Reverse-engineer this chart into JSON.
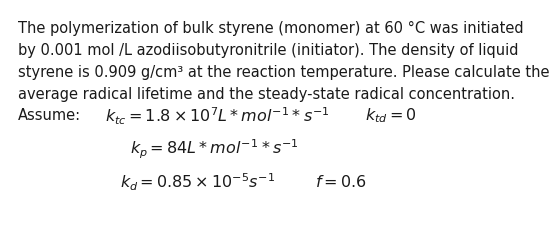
{
  "background_color": "#ffffff",
  "text_color": "#1a1a1a",
  "para_lines": [
    "The polymerization of bulk styrene (monomer) at 60 °C was initiated",
    "by 0.001 mol /L azodiisobutyronitrile (initiator). The density of liquid",
    "styrene is 0.909 g/cm³ at the reaction temperature. Please calculate the",
    "average radical lifetime and the steady-state radical concentration."
  ],
  "assume_label": "Assume:",
  "eq1_left": "$k_{tc} = 1.8\\times10^{7}L*mol^{-1}*s^{-1}$",
  "eq1_right": "$k_{td} = 0$",
  "eq2": "$k_{p} = 84L*mol^{-1}*s^{-1}$",
  "eq3_left": "$k_{d} = 0.85\\times10^{-5}s^{-1}$",
  "eq3_right": "$f = 0.6$",
  "para_fontsize": 10.5,
  "eq_fontsize": 11.5,
  "assume_fontsize": 10.5
}
